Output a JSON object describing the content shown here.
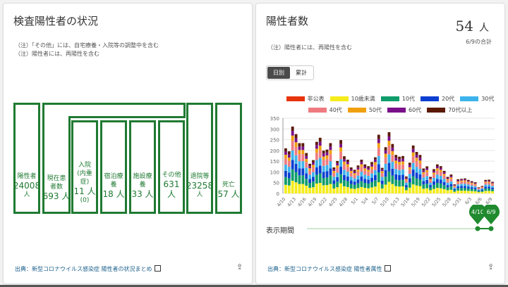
{
  "left": {
    "title": "検査陽性者の状況",
    "notes": [
      "（注）「その他」には、自宅療養・入院等の調整中を含む",
      "（注）陽性者には、再陽性を含む"
    ],
    "boxes": {
      "positive": {
        "label": "陽性者",
        "value": "24008",
        "unit": "人"
      },
      "current": {
        "label": "現在患者数",
        "value": "693 人"
      },
      "hospital": {
        "label": "入院",
        "sub": "(内重症)",
        "value": "11 人",
        "severe": "(0)"
      },
      "hotel": {
        "label": "宿泊療養",
        "value": "18 人"
      },
      "facility": {
        "label": "施設療養",
        "value": "33 人"
      },
      "other": {
        "label": "その他",
        "value": "631 人"
      },
      "discharged": {
        "label": "退院等",
        "value": "23258",
        "unit": "人"
      },
      "death": {
        "label": "死亡",
        "value": "57 人"
      }
    },
    "footer": "出典：新型コロナウイルス感染症 陽性者の状況まとめ"
  },
  "right": {
    "title": "陽性者数",
    "value": "54",
    "unit": "人",
    "value_caption": "6/9の合計",
    "note": "（注）陽性者には、再陽性を含む",
    "toggle": [
      "日別",
      "累計"
    ],
    "toggle_selected": "日別",
    "period_label": "表示期間",
    "range_start": "4/10",
    "range_end": "6/9",
    "slider_color": "#1f8a2e",
    "footer": "出典：新型コロナウイルス感染症 陽性者属性"
  },
  "chart_data": {
    "type": "bar",
    "stacked": true,
    "categories": [
      "4/10",
      "4/11",
      "4/12",
      "4/13",
      "4/14",
      "4/15",
      "4/16",
      "4/17",
      "4/18",
      "4/19",
      "4/20",
      "4/21",
      "4/22",
      "4/23",
      "4/24",
      "4/25",
      "4/26",
      "4/27",
      "4/28",
      "4/29",
      "4/30",
      "5/1",
      "5/2",
      "5/3",
      "5/4",
      "5/5",
      "5/6",
      "5/7",
      "5/8",
      "5/9",
      "5/10",
      "5/11",
      "5/12",
      "5/13",
      "5/14",
      "5/15",
      "5/16",
      "5/17",
      "5/18",
      "5/19",
      "5/20",
      "5/21",
      "5/22",
      "5/23",
      "5/24",
      "5/25",
      "5/26",
      "5/27",
      "5/28",
      "5/29",
      "5/30",
      "5/31",
      "6/1",
      "6/2",
      "6/3",
      "6/4",
      "6/5",
      "6/6",
      "6/7",
      "6/8",
      "6/9"
    ],
    "tick_labels": [
      "4/10",
      "4/13",
      "4/16",
      "4/19",
      "4/22",
      "4/25",
      "4/28",
      "5/1",
      "5/4",
      "5/7",
      "5/10",
      "5/13",
      "5/16",
      "5/19",
      "5/22",
      "5/25",
      "5/28",
      "5/31",
      "6/3",
      "6/6",
      "6/9"
    ],
    "ylim": [
      0,
      350
    ],
    "yticks": [
      0,
      50,
      100,
      150,
      200,
      250,
      300,
      350
    ],
    "grid": true,
    "legend": "top",
    "series": [
      {
        "name": "非公表",
        "color": "#e8340c",
        "values": [
          0,
          0,
          0,
          0,
          0,
          0,
          0,
          0,
          0,
          0,
          0,
          0,
          0,
          0,
          0,
          0,
          0,
          0,
          0,
          0,
          0,
          0,
          0,
          0,
          0,
          0,
          0,
          0,
          0,
          0,
          0,
          0,
          0,
          0,
          0,
          0,
          0,
          0,
          0,
          0,
          0,
          0,
          0,
          0,
          0,
          0,
          0,
          0,
          0,
          0,
          0,
          0,
          0,
          0,
          0,
          0,
          0,
          0,
          0,
          0,
          0
        ]
      },
      {
        "name": "10歳未満",
        "color": "#f5ec1c",
        "values": [
          40,
          37,
          59,
          52,
          44,
          44,
          36,
          26,
          29,
          46,
          49,
          38,
          39,
          44,
          23,
          29,
          47,
          33,
          30,
          23,
          21,
          25,
          30,
          26,
          24,
          28,
          32,
          52,
          23,
          41,
          54,
          44,
          34,
          32,
          33,
          15,
          27,
          42,
          37,
          34,
          22,
          24,
          15,
          21,
          26,
          24,
          20,
          15,
          17,
          8,
          13,
          13,
          13,
          12,
          11,
          10,
          6,
          7,
          12,
          12,
          10
        ]
      },
      {
        "name": "10代",
        "color": "#0f9d6b",
        "values": [
          36,
          33,
          53,
          47,
          40,
          40,
          32,
          23,
          26,
          41,
          44,
          34,
          35,
          40,
          21,
          26,
          42,
          29,
          27,
          21,
          19,
          22,
          27,
          23,
          22,
          25,
          29,
          46,
          20,
          37,
          48,
          39,
          30,
          29,
          30,
          13,
          24,
          38,
          33,
          30,
          20,
          21,
          13,
          19,
          23,
          22,
          18,
          13,
          15,
          7,
          11,
          12,
          12,
          11,
          10,
          9,
          5,
          6,
          11,
          11,
          9
        ]
      },
      {
        "name": "20代",
        "color": "#0b3fd1",
        "values": [
          29,
          27,
          44,
          39,
          33,
          33,
          26,
          19,
          22,
          34,
          36,
          28,
          29,
          33,
          17,
          21,
          35,
          24,
          22,
          17,
          15,
          18,
          22,
          19,
          18,
          20,
          24,
          38,
          17,
          30,
          40,
          32,
          25,
          24,
          24,
          11,
          20,
          31,
          27,
          25,
          16,
          18,
          11,
          16,
          19,
          18,
          15,
          11,
          12,
          6,
          9,
          10,
          10,
          9,
          8,
          7,
          4,
          5,
          9,
          9,
          8
        ]
      },
      {
        "name": "30代",
        "color": "#3db3ec",
        "values": [
          29,
          27,
          44,
          39,
          33,
          33,
          26,
          19,
          22,
          34,
          36,
          28,
          29,
          33,
          17,
          21,
          35,
          24,
          22,
          17,
          15,
          18,
          22,
          19,
          18,
          20,
          24,
          38,
          17,
          30,
          40,
          32,
          25,
          24,
          24,
          11,
          20,
          31,
          27,
          25,
          16,
          18,
          11,
          16,
          19,
          18,
          15,
          11,
          12,
          6,
          9,
          10,
          10,
          9,
          8,
          7,
          4,
          5,
          9,
          9,
          8
        ]
      },
      {
        "name": "40代",
        "color": "#ef7b80",
        "values": [
          29,
          27,
          44,
          39,
          33,
          33,
          26,
          19,
          22,
          34,
          36,
          28,
          29,
          33,
          17,
          21,
          35,
          24,
          22,
          17,
          15,
          18,
          22,
          19,
          18,
          20,
          24,
          38,
          17,
          30,
          40,
          32,
          25,
          24,
          24,
          11,
          20,
          31,
          27,
          25,
          16,
          18,
          11,
          16,
          19,
          18,
          15,
          11,
          12,
          6,
          9,
          10,
          10,
          9,
          8,
          7,
          4,
          5,
          9,
          9,
          8
        ]
      },
      {
        "name": "50代",
        "color": "#f0a00e",
        "values": [
          17,
          16,
          25,
          22,
          19,
          19,
          15,
          11,
          12,
          19,
          21,
          16,
          16,
          19,
          10,
          12,
          20,
          14,
          13,
          10,
          9,
          10,
          13,
          11,
          10,
          12,
          13,
          22,
          10,
          17,
          23,
          18,
          14,
          14,
          14,
          6,
          11,
          18,
          15,
          14,
          9,
          10,
          6,
          9,
          11,
          10,
          8,
          6,
          7,
          3,
          5,
          5,
          6,
          5,
          5,
          4,
          2,
          3,
          5,
          5,
          4
        ]
      },
      {
        "name": "60代",
        "color": "#7a0f8a",
        "values": [
          15,
          14,
          22,
          19,
          16,
          16,
          13,
          10,
          11,
          17,
          18,
          14,
          14,
          16,
          8,
          11,
          17,
          12,
          11,
          8,
          8,
          9,
          11,
          9,
          9,
          10,
          12,
          19,
          8,
          15,
          20,
          16,
          13,
          12,
          12,
          6,
          10,
          16,
          14,
          13,
          8,
          9,
          5,
          8,
          9,
          9,
          7,
          5,
          6,
          3,
          5,
          5,
          5,
          4,
          4,
          4,
          2,
          2,
          4,
          4,
          4
        ]
      },
      {
        "name": "70代以上",
        "color": "#5c1a06",
        "values": [
          15,
          15,
          20,
          19,
          16,
          16,
          14,
          11,
          11,
          15,
          19,
          13,
          13,
          16,
          8,
          10,
          17,
          13,
          10,
          8,
          8,
          10,
          10,
          9,
          8,
          11,
          10,
          20,
          7,
          15,
          20,
          17,
          13,
          12,
          13,
          6,
          11,
          16,
          13,
          13,
          9,
          8,
          5,
          8,
          9,
          8,
          7,
          5,
          7,
          3,
          5,
          3,
          4,
          4,
          3,
          4,
          2,
          2,
          4,
          5,
          3
        ]
      }
    ]
  }
}
